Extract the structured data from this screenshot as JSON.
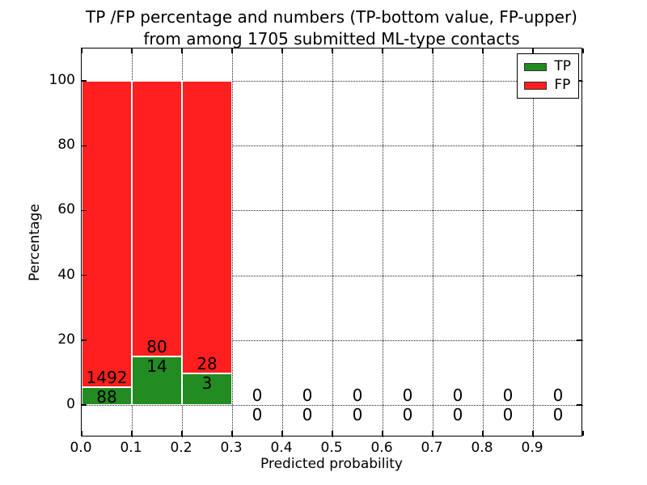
{
  "title": {
    "line1": "TP /FP percentage and numbers (TP-bottom value, FP-upper)",
    "line2": "from among 1705 submitted ML-type contacts"
  },
  "chart_data": {
    "type": "bar",
    "stacked": true,
    "title": "TP /FP percentage and numbers (TP-bottom value, FP-upper) from among 1705 submitted ML-type contacts",
    "xlabel": "Predicted probability",
    "ylabel": "Percentage",
    "xlim": [
      0.0,
      1.0
    ],
    "ylim": [
      -10,
      110
    ],
    "grid": "dotted",
    "background": "#ffffff",
    "total_contacts": 1705,
    "colors": {
      "tp": "#228b22",
      "fp": "#ff1f1f",
      "axis": "#000000"
    },
    "xticks": [
      {
        "v": 0.0,
        "label": "0.0"
      },
      {
        "v": 0.1,
        "label": "0.1"
      },
      {
        "v": 0.2,
        "label": "0.2"
      },
      {
        "v": 0.3,
        "label": "0.3"
      },
      {
        "v": 0.4,
        "label": "0.4"
      },
      {
        "v": 0.5,
        "label": "0.5"
      },
      {
        "v": 0.6,
        "label": "0.6"
      },
      {
        "v": 0.7,
        "label": "0.7"
      },
      {
        "v": 0.8,
        "label": "0.8"
      },
      {
        "v": 0.9,
        "label": "0.9"
      }
    ],
    "yticks": [
      {
        "v": 0,
        "label": "0"
      },
      {
        "v": 20,
        "label": "20"
      },
      {
        "v": 40,
        "label": "40"
      },
      {
        "v": 60,
        "label": "60"
      },
      {
        "v": 80,
        "label": "80"
      },
      {
        "v": 100,
        "label": "100"
      }
    ],
    "legend": {
      "position": "upper-right",
      "entries": [
        {
          "label": "TP",
          "color": "#228b22"
        },
        {
          "label": "FP",
          "color": "#ff1f1f"
        }
      ]
    },
    "bins": [
      {
        "range": [
          0.0,
          0.1
        ],
        "tp_count": 88,
        "fp_count": 1492,
        "tp_pct": 5.57,
        "fp_pct": 94.43
      },
      {
        "range": [
          0.1,
          0.2
        ],
        "tp_count": 14,
        "fp_count": 80,
        "tp_pct": 14.89,
        "fp_pct": 85.11
      },
      {
        "range": [
          0.2,
          0.3
        ],
        "tp_count": 3,
        "fp_count": 28,
        "tp_pct": 9.68,
        "fp_pct": 90.32
      },
      {
        "range": [
          0.3,
          0.4
        ],
        "tp_count": 0,
        "fp_count": 0,
        "tp_pct": 0,
        "fp_pct": 0
      },
      {
        "range": [
          0.4,
          0.5
        ],
        "tp_count": 0,
        "fp_count": 0,
        "tp_pct": 0,
        "fp_pct": 0
      },
      {
        "range": [
          0.5,
          0.6
        ],
        "tp_count": 0,
        "fp_count": 0,
        "tp_pct": 0,
        "fp_pct": 0
      },
      {
        "range": [
          0.6,
          0.7
        ],
        "tp_count": 0,
        "fp_count": 0,
        "tp_pct": 0,
        "fp_pct": 0
      },
      {
        "range": [
          0.7,
          0.8
        ],
        "tp_count": 0,
        "fp_count": 0,
        "tp_pct": 0,
        "fp_pct": 0
      },
      {
        "range": [
          0.8,
          0.9
        ],
        "tp_count": 0,
        "fp_count": 0,
        "tp_pct": 0,
        "fp_pct": 0
      },
      {
        "range": [
          0.9,
          1.0
        ],
        "tp_count": 0,
        "fp_count": 0,
        "tp_pct": 0,
        "fp_pct": 0
      }
    ]
  }
}
